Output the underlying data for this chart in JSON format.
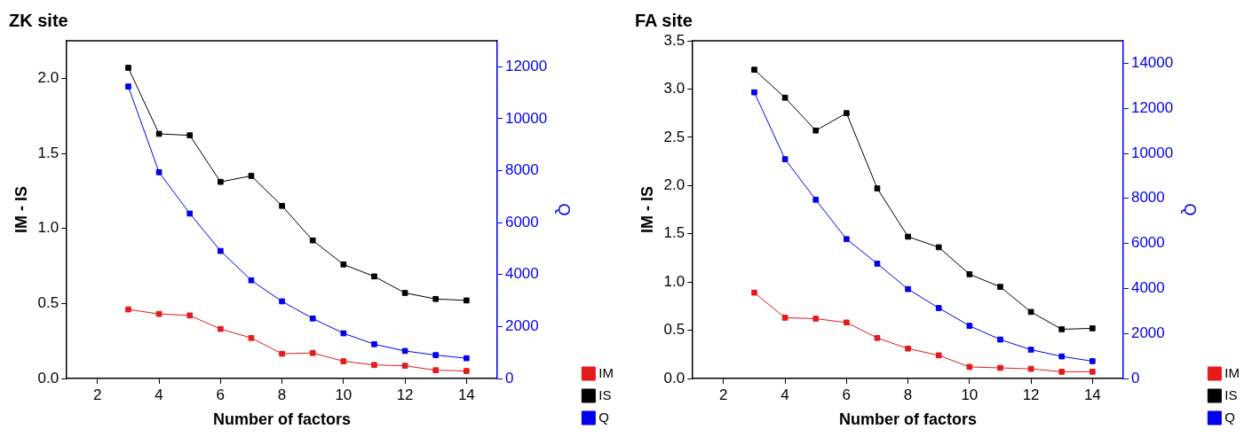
{
  "chart_data": [
    {
      "type": "line",
      "title": "ZK site",
      "xlabel": "Number of factors",
      "ylabel": "IM - IS",
      "y2label": "Q",
      "x": [
        3,
        4,
        5,
        6,
        7,
        8,
        9,
        10,
        11,
        12,
        13,
        14
      ],
      "xlim": [
        1,
        15
      ],
      "xticks": [
        2,
        4,
        6,
        8,
        10,
        12,
        14
      ],
      "ylim": [
        0,
        2.25
      ],
      "yticks": [
        {
          "value": 0,
          "label": "0.0"
        },
        0.5,
        {
          "value": 1,
          "label": "1.0"
        },
        1.5,
        {
          "value": 2,
          "label": "2.0"
        }
      ],
      "y2lim": [
        0,
        13000
      ],
      "y2ticks": [
        0,
        2000,
        4000,
        6000,
        8000,
        10000,
        12000
      ],
      "grid": false,
      "legend": "bottom right",
      "marker": "square",
      "line_style": "solid",
      "series": [
        {
          "name": "IM",
          "color": "#e41a1c",
          "values": [
            0.46,
            0.43,
            0.42,
            0.33,
            0.27,
            0.165,
            0.17,
            0.115,
            0.09,
            0.085,
            0.055,
            0.05
          ]
        },
        {
          "name": "IS",
          "color": "#000000",
          "values": [
            2.07,
            1.63,
            1.62,
            1.31,
            1.35,
            1.15,
            0.92,
            0.76,
            0.68,
            0.57,
            0.53,
            0.52
          ]
        },
        {
          "name": "Q",
          "color": "#0000ee",
          "axis": "y2",
          "values": [
            11240,
            7940,
            6350,
            4910,
            3780,
            2970,
            2310,
            1740,
            1320,
            1060,
            900,
            780
          ]
        }
      ]
    },
    {
      "type": "line",
      "title": "FA site",
      "xlabel": "Number of factors",
      "ylabel": "IM - IS",
      "y2label": "Q",
      "x": [
        3,
        4,
        5,
        6,
        7,
        8,
        9,
        10,
        11,
        12,
        13,
        14
      ],
      "xlim": [
        1,
        15
      ],
      "xticks": [
        2,
        4,
        6,
        8,
        10,
        12,
        14
      ],
      "ylim": [
        0,
        3.5
      ],
      "yticks": [
        {
          "value": 0,
          "label": "0.0"
        },
        0.5,
        {
          "value": 1,
          "label": "1.0"
        },
        1.5,
        {
          "value": 2,
          "label": "2.0"
        },
        2.5,
        {
          "value": 3,
          "label": "3.0"
        },
        3.5
      ],
      "y2lim": [
        0,
        15000
      ],
      "y2ticks": [
        0,
        2000,
        4000,
        6000,
        8000,
        10000,
        12000,
        14000
      ],
      "grid": false,
      "legend": "bottom right",
      "marker": "square",
      "line_style": "solid",
      "series": [
        {
          "name": "IM",
          "color": "#e41a1c",
          "values": [
            0.89,
            0.63,
            0.62,
            0.58,
            0.42,
            0.31,
            0.24,
            0.12,
            0.11,
            0.1,
            0.07,
            0.07
          ]
        },
        {
          "name": "IS",
          "color": "#000000",
          "values": [
            3.2,
            2.91,
            2.57,
            2.75,
            1.97,
            1.47,
            1.36,
            1.08,
            0.95,
            0.69,
            0.51,
            0.52
          ]
        },
        {
          "name": "Q",
          "color": "#0000ee",
          "axis": "y2",
          "values": [
            12710,
            9740,
            7940,
            6190,
            5100,
            3970,
            3130,
            2340,
            1730,
            1280,
            980,
            770
          ]
        }
      ]
    }
  ]
}
